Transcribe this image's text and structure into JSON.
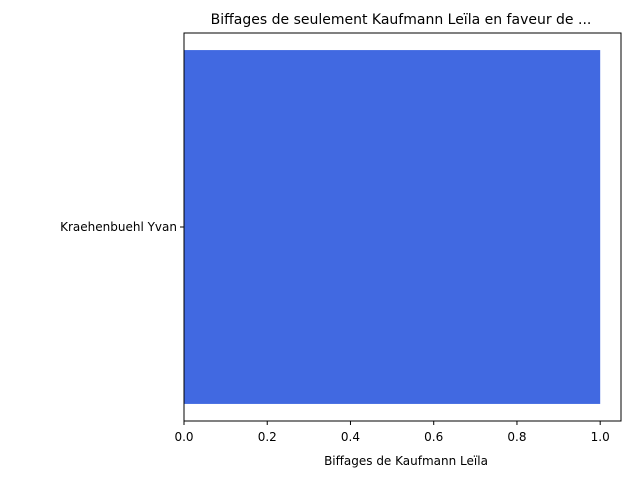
{
  "chart_data": {
    "type": "bar",
    "orientation": "horizontal",
    "title": "Biffages de seulement Kaufmann Leïla en faveur de ...",
    "xlabel": "Biffages de Kaufmann Leïla",
    "ylabel": "",
    "categories": [
      "Kraehenbuehl Yvan"
    ],
    "values": [
      1
    ],
    "xlim": [
      0,
      1.05
    ],
    "xticks": [
      "0.0",
      "0.2",
      "0.4",
      "0.6",
      "0.8",
      "1.0"
    ],
    "grid": false,
    "legend": "none",
    "bar_color": "#4169e1"
  }
}
